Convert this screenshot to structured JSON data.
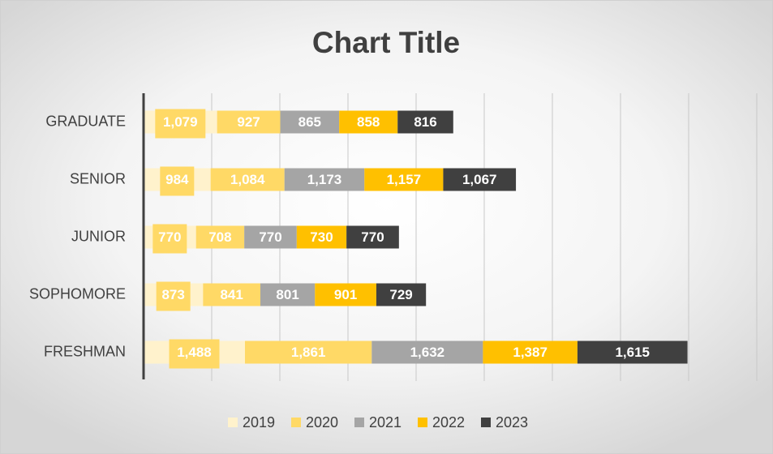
{
  "chart_data": {
    "type": "stacked_barh",
    "title": "Chart Title",
    "categories": [
      "FRESHMAN",
      "SOPHOMORE",
      "JUNIOR",
      "SENIOR",
      "GRADUATE"
    ],
    "series": [
      {
        "name": "2019",
        "color": "#fff2cc",
        "values": [
          1488,
          873,
          770,
          984,
          1079
        ],
        "value_labels": [
          "1,488",
          "873",
          "770",
          "984",
          "1,079"
        ]
      },
      {
        "name": "2020",
        "color": "#ffd966",
        "values": [
          1861,
          841,
          708,
          1084,
          927
        ],
        "value_labels": [
          "1,861",
          "841",
          "708",
          "1,084",
          "927"
        ]
      },
      {
        "name": "2021",
        "color": "#a5a5a5",
        "values": [
          1632,
          801,
          770,
          1173,
          865
        ],
        "value_labels": [
          "1,632",
          "801",
          "770",
          "1,173",
          "865"
        ]
      },
      {
        "name": "2022",
        "color": "#ffc000",
        "values": [
          1387,
          901,
          730,
          1157,
          858
        ],
        "value_labels": [
          "1,387",
          "901",
          "730",
          "1,157",
          "858"
        ]
      },
      {
        "name": "2023",
        "color": "#404040",
        "values": [
          1615,
          729,
          770,
          1067,
          816
        ],
        "value_labels": [
          "1,615",
          "729",
          "770",
          "1,067",
          "816"
        ]
      }
    ],
    "xlim": [
      0,
      9000
    ],
    "xticks": [
      0,
      1000,
      2000,
      3000,
      4000,
      5000,
      6000,
      7000,
      8000,
      9000
    ],
    "grid": true,
    "legend": "bottom"
  }
}
